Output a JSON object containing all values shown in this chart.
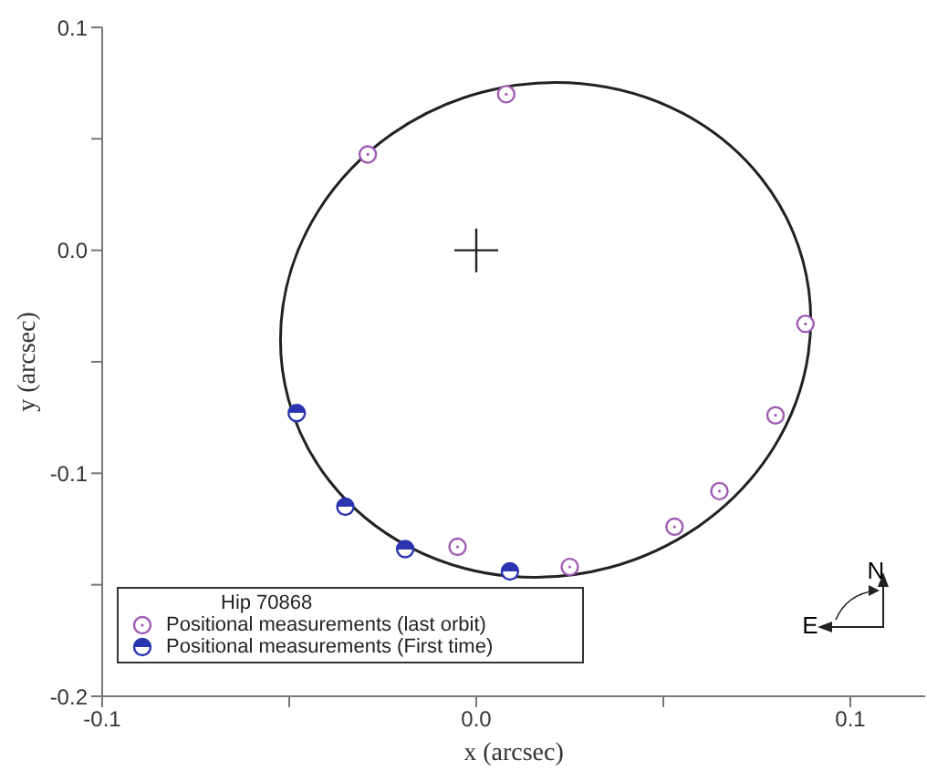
{
  "chart_data": {
    "type": "scatter",
    "xlabel": "x (arcsec)",
    "ylabel": "y (arcsec)",
    "legend_title": "Hip 70868",
    "legend": "bottom left",
    "annotations": [
      "N",
      "E"
    ],
    "xlim": [
      -0.1,
      0.12
    ],
    "xticks": [
      {
        "value": -0.1,
        "label": "-0.1"
      },
      {
        "value": -0.05,
        "label": null
      },
      {
        "value": 0,
        "label": "0.0"
      },
      {
        "value": 0.05,
        "label": null
      },
      {
        "value": 0.1,
        "label": "0.1"
      }
    ],
    "ylim": [
      -0.2,
      0.1
    ],
    "yticks": [
      {
        "value": -0.2,
        "label": "-0.2"
      },
      {
        "value": -0.15,
        "label": null
      },
      {
        "value": -0.1,
        "label": "-0.1"
      },
      {
        "value": -0.05,
        "label": null
      },
      {
        "value": 0,
        "label": "0.0"
      },
      {
        "value": 0.05,
        "label": null
      },
      {
        "value": 0.1,
        "label": "0.1"
      }
    ],
    "series": [
      {
        "type": "scatter",
        "marker": "cross",
        "color": "#222222",
        "x": [
          0
        ],
        "values": [
          0
        ]
      },
      {
        "name": "Positional measurements (last orbit)",
        "marker": "circle",
        "color": "#a05cb4",
        "x": [
          -0.029,
          0.008,
          0.088,
          0.08,
          0.065,
          0.053,
          0.025,
          -0.005
        ],
        "values": [
          0.043,
          0.07,
          -0.033,
          -0.074,
          -0.108,
          -0.124,
          -0.142,
          -0.133
        ]
      },
      {
        "name": "Positional measurements (First time)",
        "marker": "circle",
        "color": "#2b35b0",
        "x": [
          -0.048,
          -0.035,
          -0.019,
          0.009
        ],
        "values": [
          -0.073,
          -0.115,
          -0.134,
          -0.144
        ]
      }
    ]
  }
}
